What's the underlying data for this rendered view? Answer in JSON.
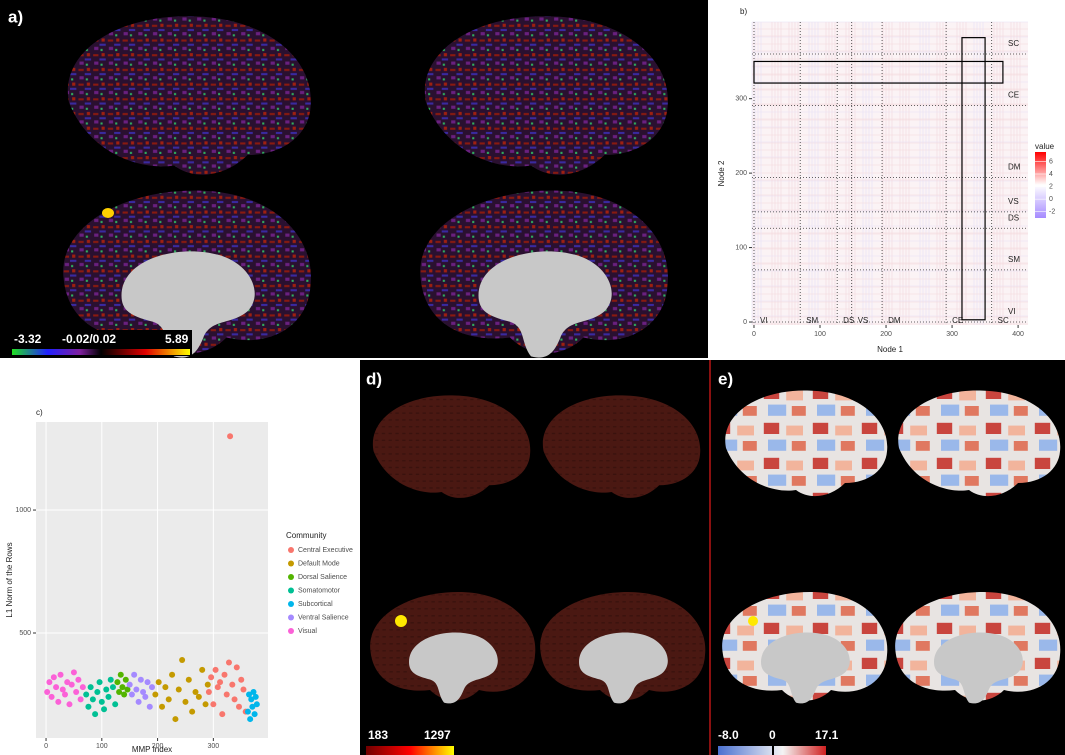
{
  "brain_panels": [
    {
      "label": "a)",
      "colorbar": [
        "-3.32",
        "-0.02/0.02",
        "5.89"
      ]
    },
    {
      "label": "d)",
      "colorbar": [
        "183",
        "1297"
      ]
    },
    {
      "label": "e)",
      "colorbar": [
        "-8.0",
        "0",
        "17.1"
      ]
    }
  ],
  "chart_data": [
    {
      "type": "heatmap",
      "label": "b)",
      "x_label": "Node 1",
      "y_label": "Node 2",
      "xlim": [
        -3,
        415
      ],
      "ylim": [
        -4,
        403
      ],
      "xticks": [
        0,
        100,
        200,
        300,
        400
      ],
      "yticks": [
        0,
        100,
        200,
        300
      ],
      "communities": [
        "VI",
        "SM",
        "DS",
        "VS",
        "DM",
        "CE",
        "SC"
      ],
      "community_bounds": [
        0,
        70,
        126,
        148,
        194,
        291,
        360
      ],
      "highlight_boxes": [
        {
          "x": [
            0,
            377
          ],
          "y": [
            321,
            350
          ]
        },
        {
          "x": [
            315,
            350
          ],
          "y": [
            3,
            382
          ]
        }
      ],
      "legend_title": "value",
      "color_lim": [
        -3,
        7.5
      ],
      "color_ticks": [
        6,
        4,
        2,
        0,
        -2
      ],
      "colors": [
        "#a58aff",
        "#ffffff",
        "#ff0000"
      ]
    },
    {
      "type": "scatter",
      "label": "c)",
      "x_label": "MMP Index",
      "y_label": "L1 Norm of the Rows",
      "xlim": [
        -18,
        398
      ],
      "ylim": [
        73,
        1358
      ],
      "xticks": [
        0,
        100,
        200,
        300
      ],
      "yticks": [
        500,
        1000
      ],
      "grid": true,
      "legend_title": "Community",
      "series": [
        {
          "name": "Central Executive",
          "color": "#F8766D",
          "x": [
            292,
            296,
            300,
            304,
            308,
            312,
            316,
            320,
            324,
            328,
            330,
            334,
            338,
            342,
            346,
            350,
            354,
            358
          ],
          "values": [
            260,
            320,
            210,
            350,
            280,
            300,
            170,
            330,
            250,
            380,
            1300,
            290,
            230,
            360,
            200,
            310,
            270,
            180
          ]
        },
        {
          "name": "Default Mode",
          "color": "#C49A00",
          "x": [
            196,
            202,
            208,
            214,
            220,
            226,
            232,
            238,
            244,
            250,
            256,
            262,
            268,
            274,
            280,
            286,
            290
          ],
          "values": [
            250,
            300,
            200,
            280,
            230,
            330,
            150,
            270,
            390,
            220,
            310,
            180,
            260,
            240,
            350,
            210,
            290
          ]
        },
        {
          "name": "Dorsal Salience",
          "color": "#53B400",
          "x": [
            128,
            131,
            134,
            137,
            140,
            143,
            146
          ],
          "values": [
            300,
            260,
            330,
            280,
            250,
            310,
            270
          ]
        },
        {
          "name": "Somatomotor",
          "color": "#00C094",
          "x": [
            72,
            76,
            80,
            84,
            88,
            92,
            96,
            100,
            104,
            108,
            112,
            116,
            120,
            124
          ],
          "values": [
            250,
            200,
            280,
            230,
            170,
            260,
            300,
            220,
            190,
            270,
            240,
            310,
            280,
            210
          ]
        },
        {
          "name": "Subcortical",
          "color": "#00B6EB",
          "x": [
            362,
            364,
            366,
            368,
            370,
            372,
            374,
            376,
            378
          ],
          "values": [
            180,
            250,
            150,
            230,
            200,
            260,
            170,
            240,
            210
          ]
        },
        {
          "name": "Ventral Salience",
          "color": "#A58AFF",
          "x": [
            150,
            154,
            158,
            162,
            166,
            170,
            174,
            178,
            182,
            186,
            190
          ],
          "values": [
            290,
            250,
            330,
            270,
            220,
            310,
            260,
            240,
            300,
            200,
            280
          ]
        },
        {
          "name": "Visual",
          "color": "#FB61D7",
          "x": [
            2,
            6,
            10,
            14,
            18,
            22,
            26,
            30,
            34,
            38,
            42,
            46,
            50,
            54,
            58,
            62,
            66
          ],
          "values": [
            260,
            300,
            240,
            320,
            280,
            220,
            330,
            270,
            250,
            300,
            210,
            290,
            340,
            260,
            310,
            230,
            280
          ]
        }
      ]
    }
  ]
}
